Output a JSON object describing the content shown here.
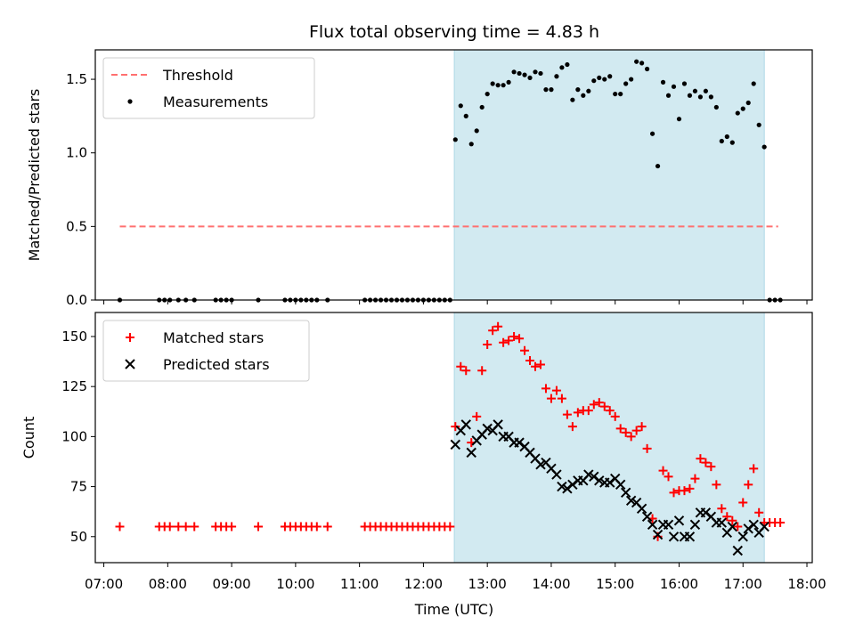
{
  "title": "Flux total observing time = 4.83 h",
  "xlabel": "Time (UTC)",
  "x_tick_labels": [
    "07:00",
    "08:00",
    "09:00",
    "10:00",
    "11:00",
    "12:00",
    "13:00",
    "14:00",
    "15:00",
    "16:00",
    "17:00",
    "18:00"
  ],
  "highlight_color": "#add8e6",
  "chart_data": [
    {
      "type": "scatter",
      "ylabel": "Matched/Predicted stars",
      "xlim": [
        "06:52",
        "18:05"
      ],
      "ylim": [
        0,
        1.7
      ],
      "y_ticks": [
        0.0,
        0.5,
        1.0,
        1.5
      ],
      "y_tick_labels": [
        "0.0",
        "0.5",
        "1.0",
        "1.5"
      ],
      "legend": {
        "position": "top-left",
        "entries": [
          "Threshold",
          "Measurements"
        ]
      },
      "highlight_span": [
        "12:29",
        "17:20"
      ],
      "threshold": {
        "name": "Threshold",
        "value": 0.5,
        "x": [
          "07:15",
          "17:33"
        ],
        "color": "#ff7070",
        "style": "dashed"
      },
      "series": [
        {
          "name": "Measurements",
          "marker": "dot",
          "color": "#000000",
          "points": [
            [
              "07:15",
              0
            ],
            [
              "07:52",
              0
            ],
            [
              "07:57",
              0
            ],
            [
              "08:02",
              0
            ],
            [
              "08:10",
              0
            ],
            [
              "08:17",
              0
            ],
            [
              "08:25",
              0
            ],
            [
              "08:45",
              0
            ],
            [
              "08:50",
              0
            ],
            [
              "08:55",
              0
            ],
            [
              "09:00",
              0
            ],
            [
              "09:25",
              0
            ],
            [
              "09:50",
              0
            ],
            [
              "09:55",
              0
            ],
            [
              "10:00",
              0
            ],
            [
              "10:05",
              0
            ],
            [
              "10:10",
              0
            ],
            [
              "10:15",
              0
            ],
            [
              "10:20",
              0
            ],
            [
              "10:30",
              0
            ],
            [
              "11:05",
              0
            ],
            [
              "11:10",
              0
            ],
            [
              "11:15",
              0
            ],
            [
              "11:20",
              0
            ],
            [
              "11:25",
              0
            ],
            [
              "11:30",
              0
            ],
            [
              "11:35",
              0
            ],
            [
              "11:40",
              0
            ],
            [
              "11:45",
              0
            ],
            [
              "11:50",
              0
            ],
            [
              "11:55",
              0
            ],
            [
              "12:00",
              0
            ],
            [
              "12:05",
              0
            ],
            [
              "12:10",
              0
            ],
            [
              "12:15",
              0
            ],
            [
              "12:20",
              0
            ],
            [
              "12:25",
              0
            ],
            [
              "12:30",
              1.09
            ],
            [
              "12:35",
              1.32
            ],
            [
              "12:40",
              1.25
            ],
            [
              "12:45",
              1.06
            ],
            [
              "12:50",
              1.15
            ],
            [
              "12:55",
              1.31
            ],
            [
              "13:00",
              1.4
            ],
            [
              "13:05",
              1.47
            ],
            [
              "13:10",
              1.46
            ],
            [
              "13:15",
              1.46
            ],
            [
              "13:20",
              1.48
            ],
            [
              "13:25",
              1.55
            ],
            [
              "13:30",
              1.54
            ],
            [
              "13:35",
              1.53
            ],
            [
              "13:40",
              1.51
            ],
            [
              "13:45",
              1.55
            ],
            [
              "13:50",
              1.54
            ],
            [
              "13:55",
              1.43
            ],
            [
              "14:00",
              1.43
            ],
            [
              "14:05",
              1.52
            ],
            [
              "14:10",
              1.58
            ],
            [
              "14:15",
              1.6
            ],
            [
              "14:20",
              1.36
            ],
            [
              "14:25",
              1.43
            ],
            [
              "14:30",
              1.39
            ],
            [
              "14:35",
              1.42
            ],
            [
              "14:40",
              1.49
            ],
            [
              "14:45",
              1.51
            ],
            [
              "14:50",
              1.5
            ],
            [
              "14:55",
              1.52
            ],
            [
              "15:00",
              1.4
            ],
            [
              "15:05",
              1.4
            ],
            [
              "15:10",
              1.47
            ],
            [
              "15:15",
              1.5
            ],
            [
              "15:20",
              1.62
            ],
            [
              "15:25",
              1.61
            ],
            [
              "15:30",
              1.57
            ],
            [
              "15:35",
              1.13
            ],
            [
              "15:40",
              0.91
            ],
            [
              "15:45",
              1.48
            ],
            [
              "15:50",
              1.39
            ],
            [
              "15:55",
              1.45
            ],
            [
              "16:00",
              1.23
            ],
            [
              "16:05",
              1.47
            ],
            [
              "16:10",
              1.39
            ],
            [
              "16:15",
              1.42
            ],
            [
              "16:20",
              1.38
            ],
            [
              "16:25",
              1.42
            ],
            [
              "16:30",
              1.38
            ],
            [
              "16:35",
              1.31
            ],
            [
              "16:40",
              1.08
            ],
            [
              "16:45",
              1.11
            ],
            [
              "16:50",
              1.07
            ],
            [
              "16:55",
              1.27
            ],
            [
              "17:00",
              1.3
            ],
            [
              "17:05",
              1.34
            ],
            [
              "17:10",
              1.47
            ],
            [
              "17:15",
              1.19
            ],
            [
              "17:20",
              1.04
            ],
            [
              "17:25",
              0
            ],
            [
              "17:30",
              0
            ],
            [
              "17:35",
              0
            ]
          ]
        }
      ]
    },
    {
      "type": "scatter",
      "ylabel": "Count",
      "xlim": [
        "06:52",
        "18:05"
      ],
      "ylim": [
        37,
        162
      ],
      "y_ticks": [
        50,
        75,
        100,
        125,
        150
      ],
      "y_tick_labels": [
        "50",
        "75",
        "100",
        "125",
        "150"
      ],
      "legend": {
        "position": "top-left",
        "entries": [
          "Matched stars",
          "Predicted stars"
        ]
      },
      "highlight_span": [
        "12:29",
        "17:20"
      ],
      "series": [
        {
          "name": "Matched stars",
          "marker": "plus",
          "color": "#ff0000",
          "points": [
            [
              "07:15",
              55
            ],
            [
              "07:52",
              55
            ],
            [
              "07:57",
              55
            ],
            [
              "08:02",
              55
            ],
            [
              "08:10",
              55
            ],
            [
              "08:17",
              55
            ],
            [
              "08:25",
              55
            ],
            [
              "08:45",
              55
            ],
            [
              "08:50",
              55
            ],
            [
              "08:55",
              55
            ],
            [
              "09:00",
              55
            ],
            [
              "09:25",
              55
            ],
            [
              "09:50",
              55
            ],
            [
              "09:55",
              55
            ],
            [
              "10:00",
              55
            ],
            [
              "10:05",
              55
            ],
            [
              "10:10",
              55
            ],
            [
              "10:15",
              55
            ],
            [
              "10:20",
              55
            ],
            [
              "10:30",
              55
            ],
            [
              "11:05",
              55
            ],
            [
              "11:10",
              55
            ],
            [
              "11:15",
              55
            ],
            [
              "11:20",
              55
            ],
            [
              "11:25",
              55
            ],
            [
              "11:30",
              55
            ],
            [
              "11:35",
              55
            ],
            [
              "11:40",
              55
            ],
            [
              "11:45",
              55
            ],
            [
              "11:50",
              55
            ],
            [
              "11:55",
              55
            ],
            [
              "12:00",
              55
            ],
            [
              "12:05",
              55
            ],
            [
              "12:10",
              55
            ],
            [
              "12:15",
              55
            ],
            [
              "12:20",
              55
            ],
            [
              "12:25",
              55
            ],
            [
              "12:30",
              105
            ],
            [
              "12:35",
              135
            ],
            [
              "12:40",
              133
            ],
            [
              "12:45",
              97
            ],
            [
              "12:50",
              110
            ],
            [
              "12:55",
              133
            ],
            [
              "13:00",
              146
            ],
            [
              "13:05",
              153
            ],
            [
              "13:10",
              155
            ],
            [
              "13:15",
              147
            ],
            [
              "13:20",
              148
            ],
            [
              "13:25",
              150
            ],
            [
              "13:30",
              149
            ],
            [
              "13:35",
              143
            ],
            [
              "13:40",
              138
            ],
            [
              "13:45",
              135
            ],
            [
              "13:50",
              136
            ],
            [
              "13:55",
              124
            ],
            [
              "14:00",
              119
            ],
            [
              "14:05",
              123
            ],
            [
              "14:10",
              119
            ],
            [
              "14:15",
              111
            ],
            [
              "14:20",
              105
            ],
            [
              "14:25",
              112
            ],
            [
              "14:30",
              113
            ],
            [
              "14:35",
              113
            ],
            [
              "14:40",
              116
            ],
            [
              "14:45",
              117
            ],
            [
              "14:50",
              115
            ],
            [
              "14:55",
              113
            ],
            [
              "15:00",
              110
            ],
            [
              "15:05",
              104
            ],
            [
              "15:10",
              102
            ],
            [
              "15:15",
              100
            ],
            [
              "15:20",
              103
            ],
            [
              "15:25",
              105
            ],
            [
              "15:30",
              94
            ],
            [
              "15:35",
              59
            ],
            [
              "15:40",
              50
            ],
            [
              "15:45",
              83
            ],
            [
              "15:50",
              80
            ],
            [
              "15:55",
              72
            ],
            [
              "16:00",
              73
            ],
            [
              "16:05",
              73
            ],
            [
              "16:10",
              74
            ],
            [
              "16:15",
              79
            ],
            [
              "16:20",
              89
            ],
            [
              "16:25",
              87
            ],
            [
              "16:30",
              85
            ],
            [
              "16:35",
              76
            ],
            [
              "16:40",
              64
            ],
            [
              "16:45",
              60
            ],
            [
              "16:50",
              58
            ],
            [
              "16:55",
              55
            ],
            [
              "17:00",
              67
            ],
            [
              "17:05",
              76
            ],
            [
              "17:10",
              84
            ],
            [
              "17:15",
              62
            ],
            [
              "17:20",
              57
            ],
            [
              "17:25",
              57
            ],
            [
              "17:30",
              57
            ],
            [
              "17:35",
              57
            ]
          ]
        },
        {
          "name": "Predicted stars",
          "marker": "x",
          "color": "#000000",
          "points": [
            [
              "12:30",
              96
            ],
            [
              "12:35",
              103
            ],
            [
              "12:40",
              106
            ],
            [
              "12:45",
              92
            ],
            [
              "12:50",
              98
            ],
            [
              "12:55",
              101
            ],
            [
              "13:00",
              104
            ],
            [
              "13:05",
              103
            ],
            [
              "13:10",
              106
            ],
            [
              "13:15",
              100
            ],
            [
              "13:20",
              100
            ],
            [
              "13:25",
              97
            ],
            [
              "13:30",
              97
            ],
            [
              "13:35",
              95
            ],
            [
              "13:40",
              92
            ],
            [
              "13:45",
              89
            ],
            [
              "13:50",
              86
            ],
            [
              "13:55",
              87
            ],
            [
              "14:00",
              84
            ],
            [
              "14:05",
              81
            ],
            [
              "14:10",
              75
            ],
            [
              "14:15",
              74
            ],
            [
              "14:20",
              76
            ],
            [
              "14:25",
              78
            ],
            [
              "14:30",
              78
            ],
            [
              "14:35",
              81
            ],
            [
              "14:40",
              80
            ],
            [
              "14:45",
              78
            ],
            [
              "14:50",
              77
            ],
            [
              "14:55",
              77
            ],
            [
              "15:00",
              79
            ],
            [
              "15:05",
              76
            ],
            [
              "15:10",
              72
            ],
            [
              "15:15",
              68
            ],
            [
              "15:20",
              67
            ],
            [
              "15:25",
              64
            ],
            [
              "15:30",
              60
            ],
            [
              "15:35",
              56
            ],
            [
              "15:40",
              51
            ],
            [
              "15:45",
              56
            ],
            [
              "15:50",
              56
            ],
            [
              "15:55",
              50
            ],
            [
              "16:00",
              58
            ],
            [
              "16:05",
              50
            ],
            [
              "16:10",
              50
            ],
            [
              "16:15",
              56
            ],
            [
              "16:20",
              62
            ],
            [
              "16:25",
              62
            ],
            [
              "16:30",
              60
            ],
            [
              "16:35",
              57
            ],
            [
              "16:40",
              57
            ],
            [
              "16:45",
              52
            ],
            [
              "16:50",
              55
            ],
            [
              "16:55",
              43
            ],
            [
              "17:00",
              50
            ],
            [
              "17:05",
              54
            ],
            [
              "17:10",
              56
            ],
            [
              "17:15",
              52
            ],
            [
              "17:20",
              55
            ]
          ]
        }
      ]
    }
  ]
}
